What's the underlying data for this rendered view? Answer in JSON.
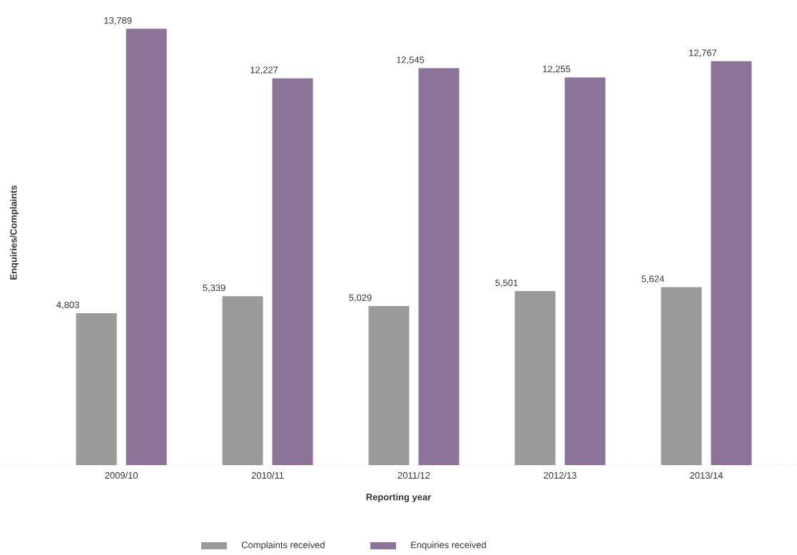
{
  "chart_data": {
    "type": "bar",
    "xlabel": "Reporting year",
    "ylabel": "Enquiries/Complaints",
    "categories": [
      "2009/10",
      "2010/11",
      "2011/12",
      "2012/13",
      "2013/14"
    ],
    "series": [
      {
        "name": "Complaints received",
        "color": "#9a9a9a",
        "values": [
          4803,
          5339,
          5029,
          5501,
          5624
        ],
        "value_labels": [
          "4,803",
          "5,339",
          "5,029",
          "5,501",
          "5,624"
        ]
      },
      {
        "name": "Enquiries received",
        "color": "#8b7497",
        "values": [
          13789,
          12227,
          12545,
          12255,
          12767
        ],
        "value_labels": [
          "13,789",
          "12,227",
          "12,545",
          "12,255",
          "12,767"
        ]
      }
    ],
    "legend": "bottom",
    "tick_labels": "x"
  }
}
